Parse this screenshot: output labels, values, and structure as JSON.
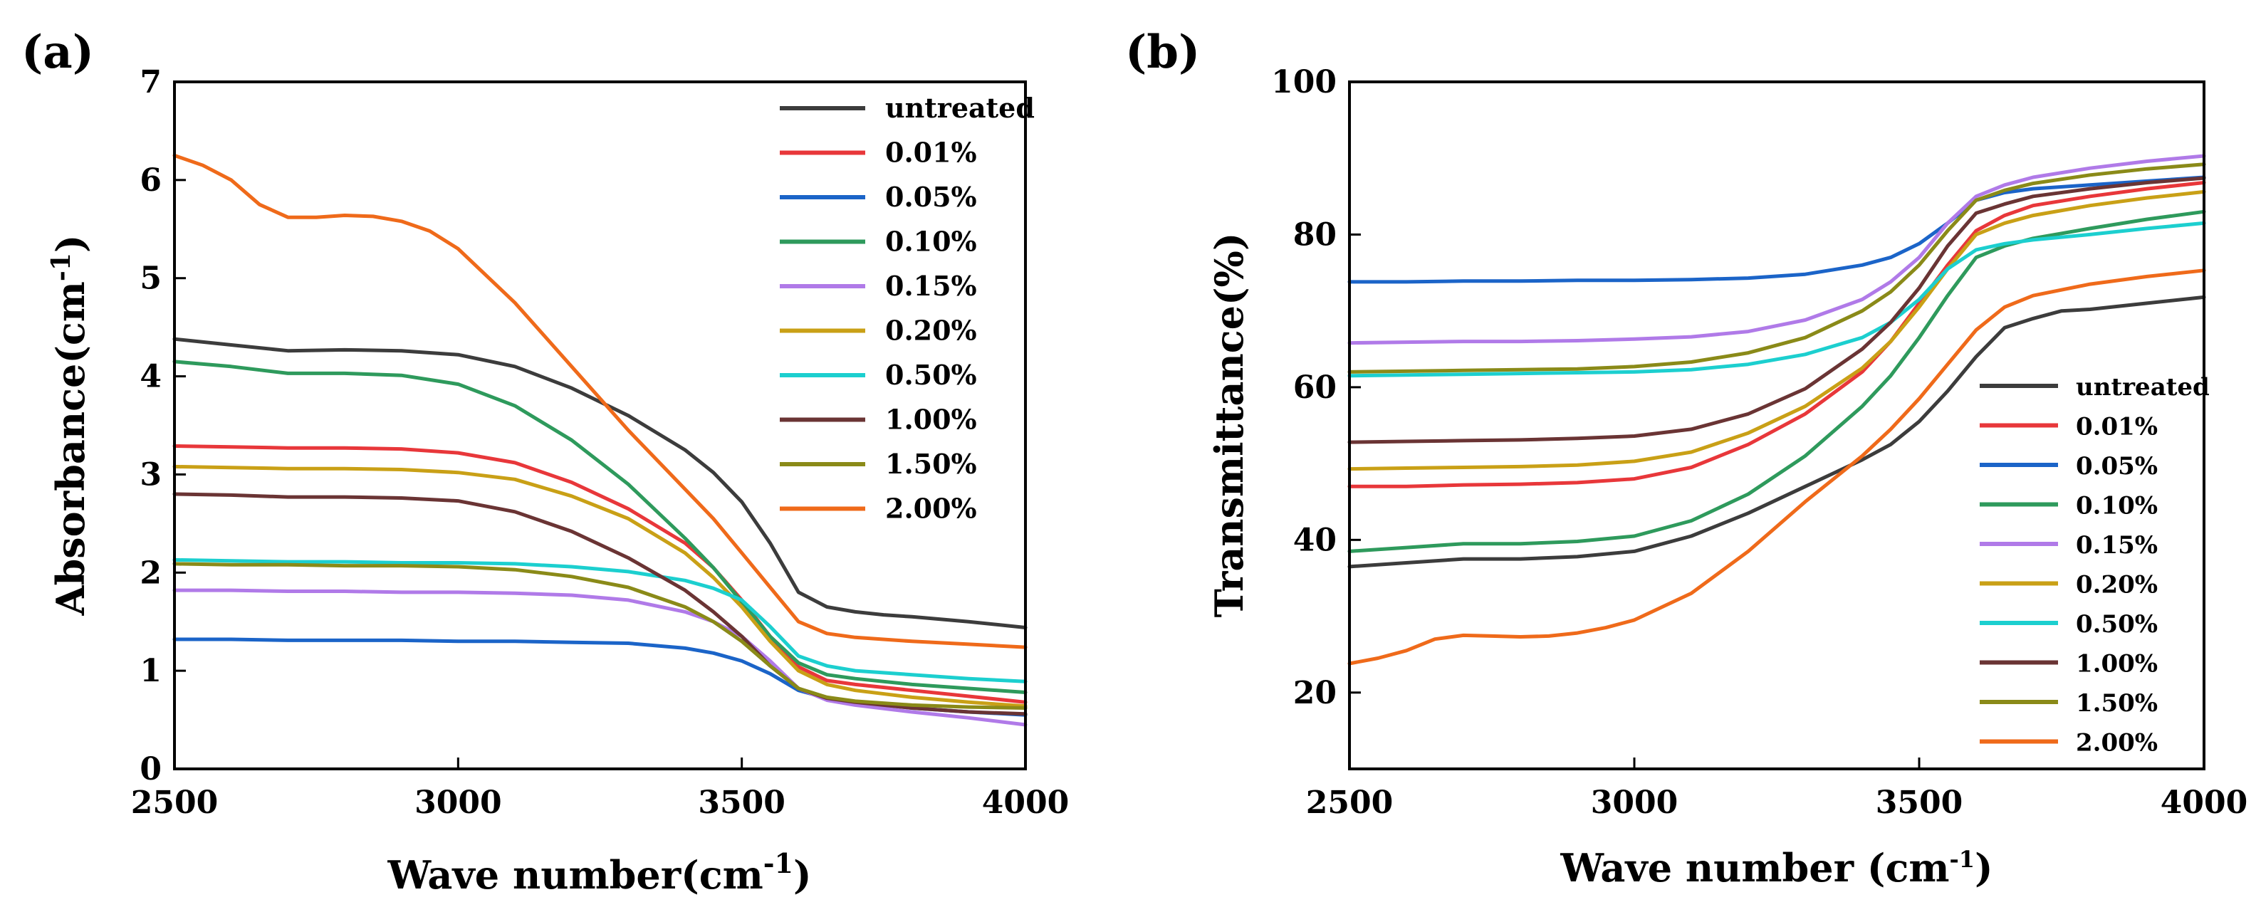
{
  "chart_data": [
    {
      "id": "a",
      "type": "line",
      "panel_label": "(a)",
      "title": "",
      "xlabel": "Wave number(cm",
      "xlabel_sup": "-1",
      "xlabel_end": ")",
      "ylabel": "Absorbance(cm",
      "ylabel_sup": "-1",
      "ylabel_end": ")",
      "xlim": [
        2500,
        4000
      ],
      "ylim": [
        0,
        7
      ],
      "xticks": [
        "2500",
        "3000",
        "3500",
        "4000"
      ],
      "yticks": [
        "0",
        "1",
        "2",
        "3",
        "4",
        "5",
        "6",
        "7"
      ],
      "legend_position": "top-right",
      "series": [
        {
          "name": "untreated",
          "color": "#3c3c3c",
          "x": [
            2500,
            2600,
            2700,
            2800,
            2900,
            3000,
            3100,
            3200,
            3300,
            3400,
            3450,
            3500,
            3550,
            3600,
            3650,
            3700,
            3750,
            3800,
            3900,
            4000
          ],
          "y": [
            4.38,
            4.32,
            4.26,
            4.27,
            4.26,
            4.22,
            4.1,
            3.88,
            3.6,
            3.25,
            3.02,
            2.72,
            2.3,
            1.8,
            1.65,
            1.6,
            1.57,
            1.55,
            1.5,
            1.44
          ]
        },
        {
          "name": "0.01%",
          "color": "#e8373a",
          "x": [
            2500,
            2600,
            2700,
            2800,
            2900,
            3000,
            3100,
            3200,
            3300,
            3400,
            3450,
            3500,
            3550,
            3600,
            3650,
            3700,
            3800,
            3900,
            4000
          ],
          "y": [
            3.29,
            3.28,
            3.27,
            3.27,
            3.26,
            3.22,
            3.12,
            2.92,
            2.65,
            2.3,
            2.05,
            1.72,
            1.35,
            1.04,
            0.9,
            0.86,
            0.8,
            0.74,
            0.68
          ]
        },
        {
          "name": "0.05%",
          "color": "#1b64c8",
          "x": [
            2500,
            2600,
            2700,
            2800,
            2900,
            3000,
            3100,
            3200,
            3300,
            3400,
            3450,
            3500,
            3550,
            3600,
            3650,
            3700,
            3800,
            3900,
            4000
          ],
          "y": [
            1.32,
            1.32,
            1.31,
            1.31,
            1.31,
            1.3,
            1.3,
            1.29,
            1.28,
            1.23,
            1.18,
            1.1,
            0.97,
            0.8,
            0.72,
            0.68,
            0.62,
            0.58,
            0.55
          ]
        },
        {
          "name": "0.10%",
          "color": "#2e9a5c",
          "x": [
            2500,
            2600,
            2700,
            2800,
            2900,
            3000,
            3100,
            3200,
            3300,
            3400,
            3450,
            3500,
            3550,
            3600,
            3650,
            3700,
            3800,
            3900,
            4000
          ],
          "y": [
            4.15,
            4.1,
            4.03,
            4.03,
            4.01,
            3.92,
            3.7,
            3.35,
            2.9,
            2.35,
            2.05,
            1.7,
            1.35,
            1.08,
            0.96,
            0.92,
            0.86,
            0.82,
            0.78
          ]
        },
        {
          "name": "0.15%",
          "color": "#b07ae8",
          "x": [
            2500,
            2600,
            2700,
            2800,
            2900,
            3000,
            3100,
            3200,
            3300,
            3400,
            3450,
            3500,
            3550,
            3600,
            3650,
            3700,
            3800,
            3900,
            4000
          ],
          "y": [
            1.82,
            1.82,
            1.81,
            1.81,
            1.8,
            1.8,
            1.79,
            1.77,
            1.72,
            1.6,
            1.5,
            1.35,
            1.1,
            0.82,
            0.7,
            0.65,
            0.58,
            0.52,
            0.45
          ]
        },
        {
          "name": "0.20%",
          "color": "#c9a016",
          "x": [
            2500,
            2600,
            2700,
            2800,
            2900,
            3000,
            3100,
            3200,
            3300,
            3400,
            3450,
            3500,
            3550,
            3600,
            3650,
            3700,
            3800,
            3900,
            4000
          ],
          "y": [
            3.08,
            3.07,
            3.06,
            3.06,
            3.05,
            3.02,
            2.95,
            2.78,
            2.55,
            2.2,
            1.95,
            1.65,
            1.3,
            1.0,
            0.86,
            0.8,
            0.73,
            0.68,
            0.64
          ]
        },
        {
          "name": "0.50%",
          "color": "#1ccfcf",
          "x": [
            2500,
            2600,
            2700,
            2800,
            2900,
            3000,
            3100,
            3200,
            3300,
            3400,
            3450,
            3500,
            3550,
            3600,
            3650,
            3700,
            3800,
            3900,
            4000
          ],
          "y": [
            2.13,
            2.12,
            2.11,
            2.11,
            2.1,
            2.1,
            2.09,
            2.06,
            2.01,
            1.92,
            1.84,
            1.72,
            1.45,
            1.15,
            1.05,
            1.0,
            0.96,
            0.92,
            0.89
          ]
        },
        {
          "name": "1.00%",
          "color": "#6a3434",
          "x": [
            2500,
            2600,
            2700,
            2800,
            2900,
            3000,
            3100,
            3200,
            3300,
            3400,
            3450,
            3500,
            3550,
            3600,
            3650,
            3700,
            3800,
            3900,
            4000
          ],
          "y": [
            2.8,
            2.79,
            2.77,
            2.77,
            2.76,
            2.73,
            2.62,
            2.42,
            2.15,
            1.82,
            1.6,
            1.35,
            1.05,
            0.82,
            0.72,
            0.68,
            0.62,
            0.58,
            0.56
          ]
        },
        {
          "name": "1.50%",
          "color": "#8a8a18",
          "x": [
            2500,
            2600,
            2700,
            2800,
            2900,
            3000,
            3100,
            3200,
            3300,
            3400,
            3450,
            3500,
            3550,
            3600,
            3650,
            3700,
            3800,
            3900,
            4000
          ],
          "y": [
            2.09,
            2.08,
            2.08,
            2.07,
            2.07,
            2.06,
            2.03,
            1.96,
            1.85,
            1.65,
            1.5,
            1.3,
            1.05,
            0.82,
            0.73,
            0.69,
            0.65,
            0.63,
            0.62
          ]
        },
        {
          "name": "2.00%",
          "color": "#ef6a1a",
          "x": [
            2500,
            2550,
            2600,
            2650,
            2700,
            2750,
            2800,
            2850,
            2900,
            2950,
            3000,
            3100,
            3200,
            3300,
            3400,
            3450,
            3500,
            3550,
            3600,
            3650,
            3700,
            3800,
            3900,
            4000
          ],
          "y": [
            6.25,
            6.15,
            6.0,
            5.75,
            5.62,
            5.62,
            5.64,
            5.63,
            5.58,
            5.48,
            5.3,
            4.75,
            4.1,
            3.45,
            2.85,
            2.55,
            2.2,
            1.85,
            1.5,
            1.38,
            1.34,
            1.3,
            1.27,
            1.24
          ]
        }
      ]
    },
    {
      "id": "b",
      "type": "line",
      "panel_label": "(b)",
      "title": "",
      "xlabel": "Wave number (cm",
      "xlabel_sup": "-1",
      "xlabel_end": ")",
      "ylabel": "Transmittance(%)",
      "xlim": [
        2500,
        4000
      ],
      "ylim": [
        10,
        100
      ],
      "xticks": [
        "2500",
        "3000",
        "3500",
        "4000"
      ],
      "yticks": [
        "20",
        "40",
        "60",
        "80",
        "100"
      ],
      "legend_position": "bottom-right",
      "series": [
        {
          "name": "untreated",
          "color": "#3c3c3c",
          "x": [
            2500,
            2600,
            2700,
            2800,
            2900,
            3000,
            3100,
            3200,
            3300,
            3400,
            3450,
            3500,
            3550,
            3600,
            3650,
            3700,
            3750,
            3800,
            3900,
            4000
          ],
          "y": [
            36.5,
            37.0,
            37.5,
            37.5,
            37.8,
            38.5,
            40.5,
            43.5,
            47.0,
            50.5,
            52.5,
            55.5,
            59.5,
            64.0,
            67.8,
            69.0,
            70.0,
            70.2,
            71.0,
            71.8
          ]
        },
        {
          "name": "0.01%",
          "color": "#e8373a",
          "x": [
            2500,
            2600,
            2700,
            2800,
            2900,
            3000,
            3100,
            3200,
            3300,
            3400,
            3450,
            3500,
            3550,
            3600,
            3650,
            3700,
            3800,
            3900,
            4000
          ],
          "y": [
            47.0,
            47.0,
            47.2,
            47.3,
            47.5,
            48.0,
            49.5,
            52.5,
            56.5,
            62.0,
            66.0,
            71.0,
            76.0,
            80.5,
            82.5,
            83.8,
            85.0,
            86.0,
            86.8
          ]
        },
        {
          "name": "0.05%",
          "color": "#1b64c8",
          "x": [
            2500,
            2600,
            2700,
            2800,
            2900,
            3000,
            3100,
            3200,
            3300,
            3400,
            3450,
            3500,
            3550,
            3600,
            3650,
            3700,
            3800,
            3900,
            4000
          ],
          "y": [
            73.8,
            73.8,
            73.9,
            73.9,
            74.0,
            74.0,
            74.1,
            74.3,
            74.8,
            76.0,
            77.0,
            78.8,
            81.5,
            84.5,
            85.5,
            86.0,
            86.5,
            87.0,
            87.5
          ]
        },
        {
          "name": "0.10%",
          "color": "#2e9a5c",
          "x": [
            2500,
            2600,
            2700,
            2800,
            2900,
            3000,
            3100,
            3200,
            3300,
            3400,
            3450,
            3500,
            3550,
            3600,
            3650,
            3700,
            3800,
            3900,
            4000
          ],
          "y": [
            38.5,
            39.0,
            39.5,
            39.5,
            39.8,
            40.5,
            42.5,
            46.0,
            51.0,
            57.5,
            61.5,
            66.5,
            72.0,
            77.0,
            78.5,
            79.5,
            80.8,
            82.0,
            83.0
          ]
        },
        {
          "name": "0.15%",
          "color": "#b07ae8",
          "x": [
            2500,
            2600,
            2700,
            2800,
            2900,
            3000,
            3100,
            3200,
            3300,
            3400,
            3450,
            3500,
            3550,
            3600,
            3650,
            3700,
            3800,
            3900,
            4000
          ],
          "y": [
            65.8,
            65.9,
            66.0,
            66.0,
            66.1,
            66.3,
            66.6,
            67.3,
            68.8,
            71.5,
            73.8,
            77.0,
            81.5,
            85.0,
            86.5,
            87.5,
            88.7,
            89.6,
            90.3
          ]
        },
        {
          "name": "0.20%",
          "color": "#c9a016",
          "x": [
            2500,
            2600,
            2700,
            2800,
            2900,
            3000,
            3100,
            3200,
            3300,
            3400,
            3450,
            3500,
            3550,
            3600,
            3650,
            3700,
            3800,
            3900,
            4000
          ],
          "y": [
            49.3,
            49.4,
            49.5,
            49.6,
            49.8,
            50.3,
            51.5,
            54.0,
            57.5,
            62.5,
            66.0,
            70.5,
            75.5,
            80.0,
            81.5,
            82.5,
            83.8,
            84.8,
            85.6
          ]
        },
        {
          "name": "0.50%",
          "color": "#1ccfcf",
          "x": [
            2500,
            2600,
            2700,
            2800,
            2900,
            3000,
            3100,
            3200,
            3300,
            3400,
            3450,
            3500,
            3550,
            3600,
            3650,
            3700,
            3800,
            3900,
            4000
          ],
          "y": [
            61.5,
            61.6,
            61.7,
            61.8,
            61.9,
            62.0,
            62.3,
            63.0,
            64.3,
            66.5,
            68.5,
            71.5,
            75.5,
            78.0,
            78.8,
            79.3,
            80.0,
            80.8,
            81.5
          ]
        },
        {
          "name": "1.00%",
          "color": "#6a3434",
          "x": [
            2500,
            2600,
            2700,
            2800,
            2900,
            3000,
            3100,
            3200,
            3300,
            3400,
            3450,
            3500,
            3550,
            3600,
            3650,
            3700,
            3800,
            3900,
            4000
          ],
          "y": [
            52.8,
            52.9,
            53.0,
            53.1,
            53.3,
            53.6,
            54.5,
            56.5,
            59.8,
            65.0,
            68.5,
            73.0,
            78.5,
            82.8,
            84.0,
            85.0,
            86.0,
            86.8,
            87.4
          ]
        },
        {
          "name": "1.50%",
          "color": "#8a8a18",
          "x": [
            2500,
            2600,
            2700,
            2800,
            2900,
            3000,
            3100,
            3200,
            3300,
            3400,
            3450,
            3500,
            3550,
            3600,
            3650,
            3700,
            3800,
            3900,
            4000
          ],
          "y": [
            62.0,
            62.1,
            62.2,
            62.3,
            62.4,
            62.7,
            63.3,
            64.5,
            66.5,
            70.0,
            72.5,
            76.0,
            80.5,
            84.5,
            85.8,
            86.7,
            87.8,
            88.6,
            89.2
          ]
        },
        {
          "name": "2.00%",
          "color": "#ef6a1a",
          "x": [
            2500,
            2550,
            2600,
            2650,
            2700,
            2750,
            2800,
            2850,
            2900,
            2950,
            3000,
            3100,
            3200,
            3300,
            3400,
            3450,
            3500,
            3550,
            3600,
            3650,
            3700,
            3800,
            3900,
            4000
          ],
          "y": [
            23.8,
            24.5,
            25.5,
            27.0,
            27.5,
            27.4,
            27.3,
            27.4,
            27.8,
            28.5,
            29.5,
            33.0,
            38.5,
            45.0,
            51.0,
            54.5,
            58.5,
            63.0,
            67.5,
            70.5,
            72.0,
            73.5,
            74.5,
            75.3
          ]
        }
      ]
    }
  ]
}
